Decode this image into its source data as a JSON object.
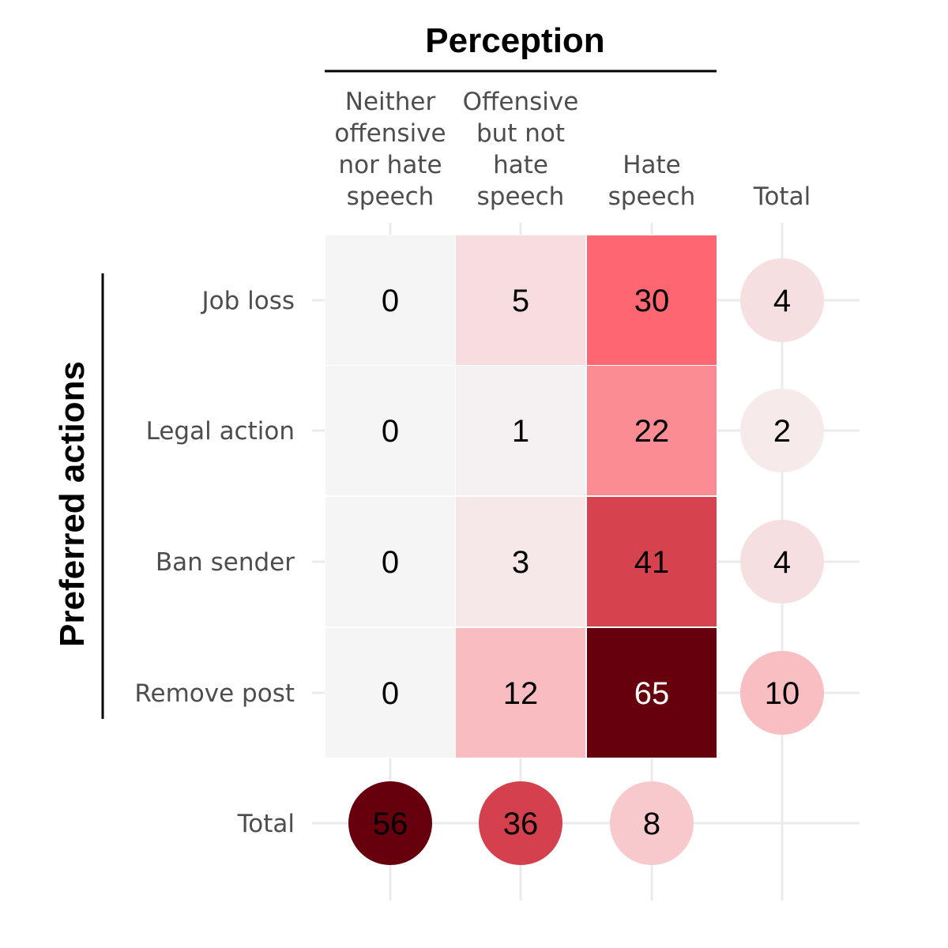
{
  "chart_data": {
    "type": "heatmap",
    "title": "Perception",
    "ylabel": "Preferred actions",
    "columns": [
      [
        "Neither",
        "offensive",
        "nor hate",
        "speech"
      ],
      [
        "Offensive",
        "but not",
        "hate",
        "speech"
      ],
      [
        "Hate",
        "speech"
      ]
    ],
    "rows": [
      "Job loss",
      "Legal action",
      "Ban sender",
      "Remove post"
    ],
    "total_label": "Total",
    "values": [
      [
        0,
        5,
        30
      ],
      [
        0,
        1,
        22
      ],
      [
        0,
        3,
        41
      ],
      [
        0,
        12,
        65
      ]
    ],
    "row_totals": [
      4,
      2,
      4,
      10
    ],
    "column_totals": [
      56,
      36,
      8
    ],
    "color_scale": {
      "low": "#f5f5f5",
      "mid": "#ff5a66",
      "high": "#67000d"
    }
  }
}
